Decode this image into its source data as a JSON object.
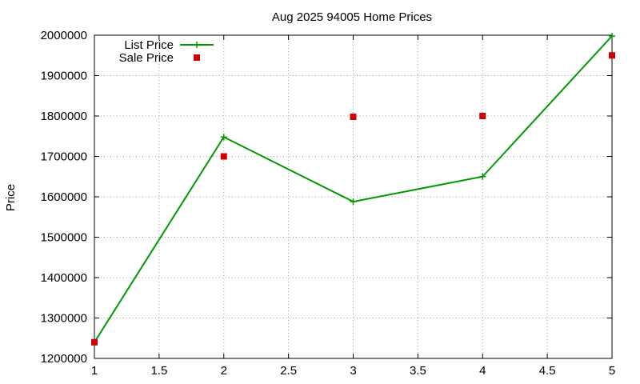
{
  "chart_data": {
    "type": "line",
    "title": "Aug 2025 94005 Home Prices",
    "xlabel": "",
    "ylabel": "Price",
    "xlim": [
      1,
      5
    ],
    "ylim": [
      1200000,
      2000000
    ],
    "grid": true,
    "legend_position": "top-left",
    "x_ticks": [
      1,
      1.5,
      2,
      2.5,
      3,
      3.5,
      4,
      4.5,
      5
    ],
    "y_ticks": [
      1200000,
      1300000,
      1400000,
      1500000,
      1600000,
      1700000,
      1800000,
      1900000,
      2000000
    ],
    "series": [
      {
        "name": "List Price",
        "style": "linespoints",
        "color": "#009900",
        "x": [
          1,
          2,
          3,
          4,
          5
        ],
        "y": [
          1240000,
          1748000,
          1588000,
          1650000,
          1998000
        ]
      },
      {
        "name": "Sale Price",
        "style": "points",
        "color": "#cc0000",
        "x": [
          1,
          2,
          3,
          4,
          5
        ],
        "y": [
          1240000,
          1700000,
          1798000,
          1800000,
          1950000
        ]
      }
    ]
  }
}
